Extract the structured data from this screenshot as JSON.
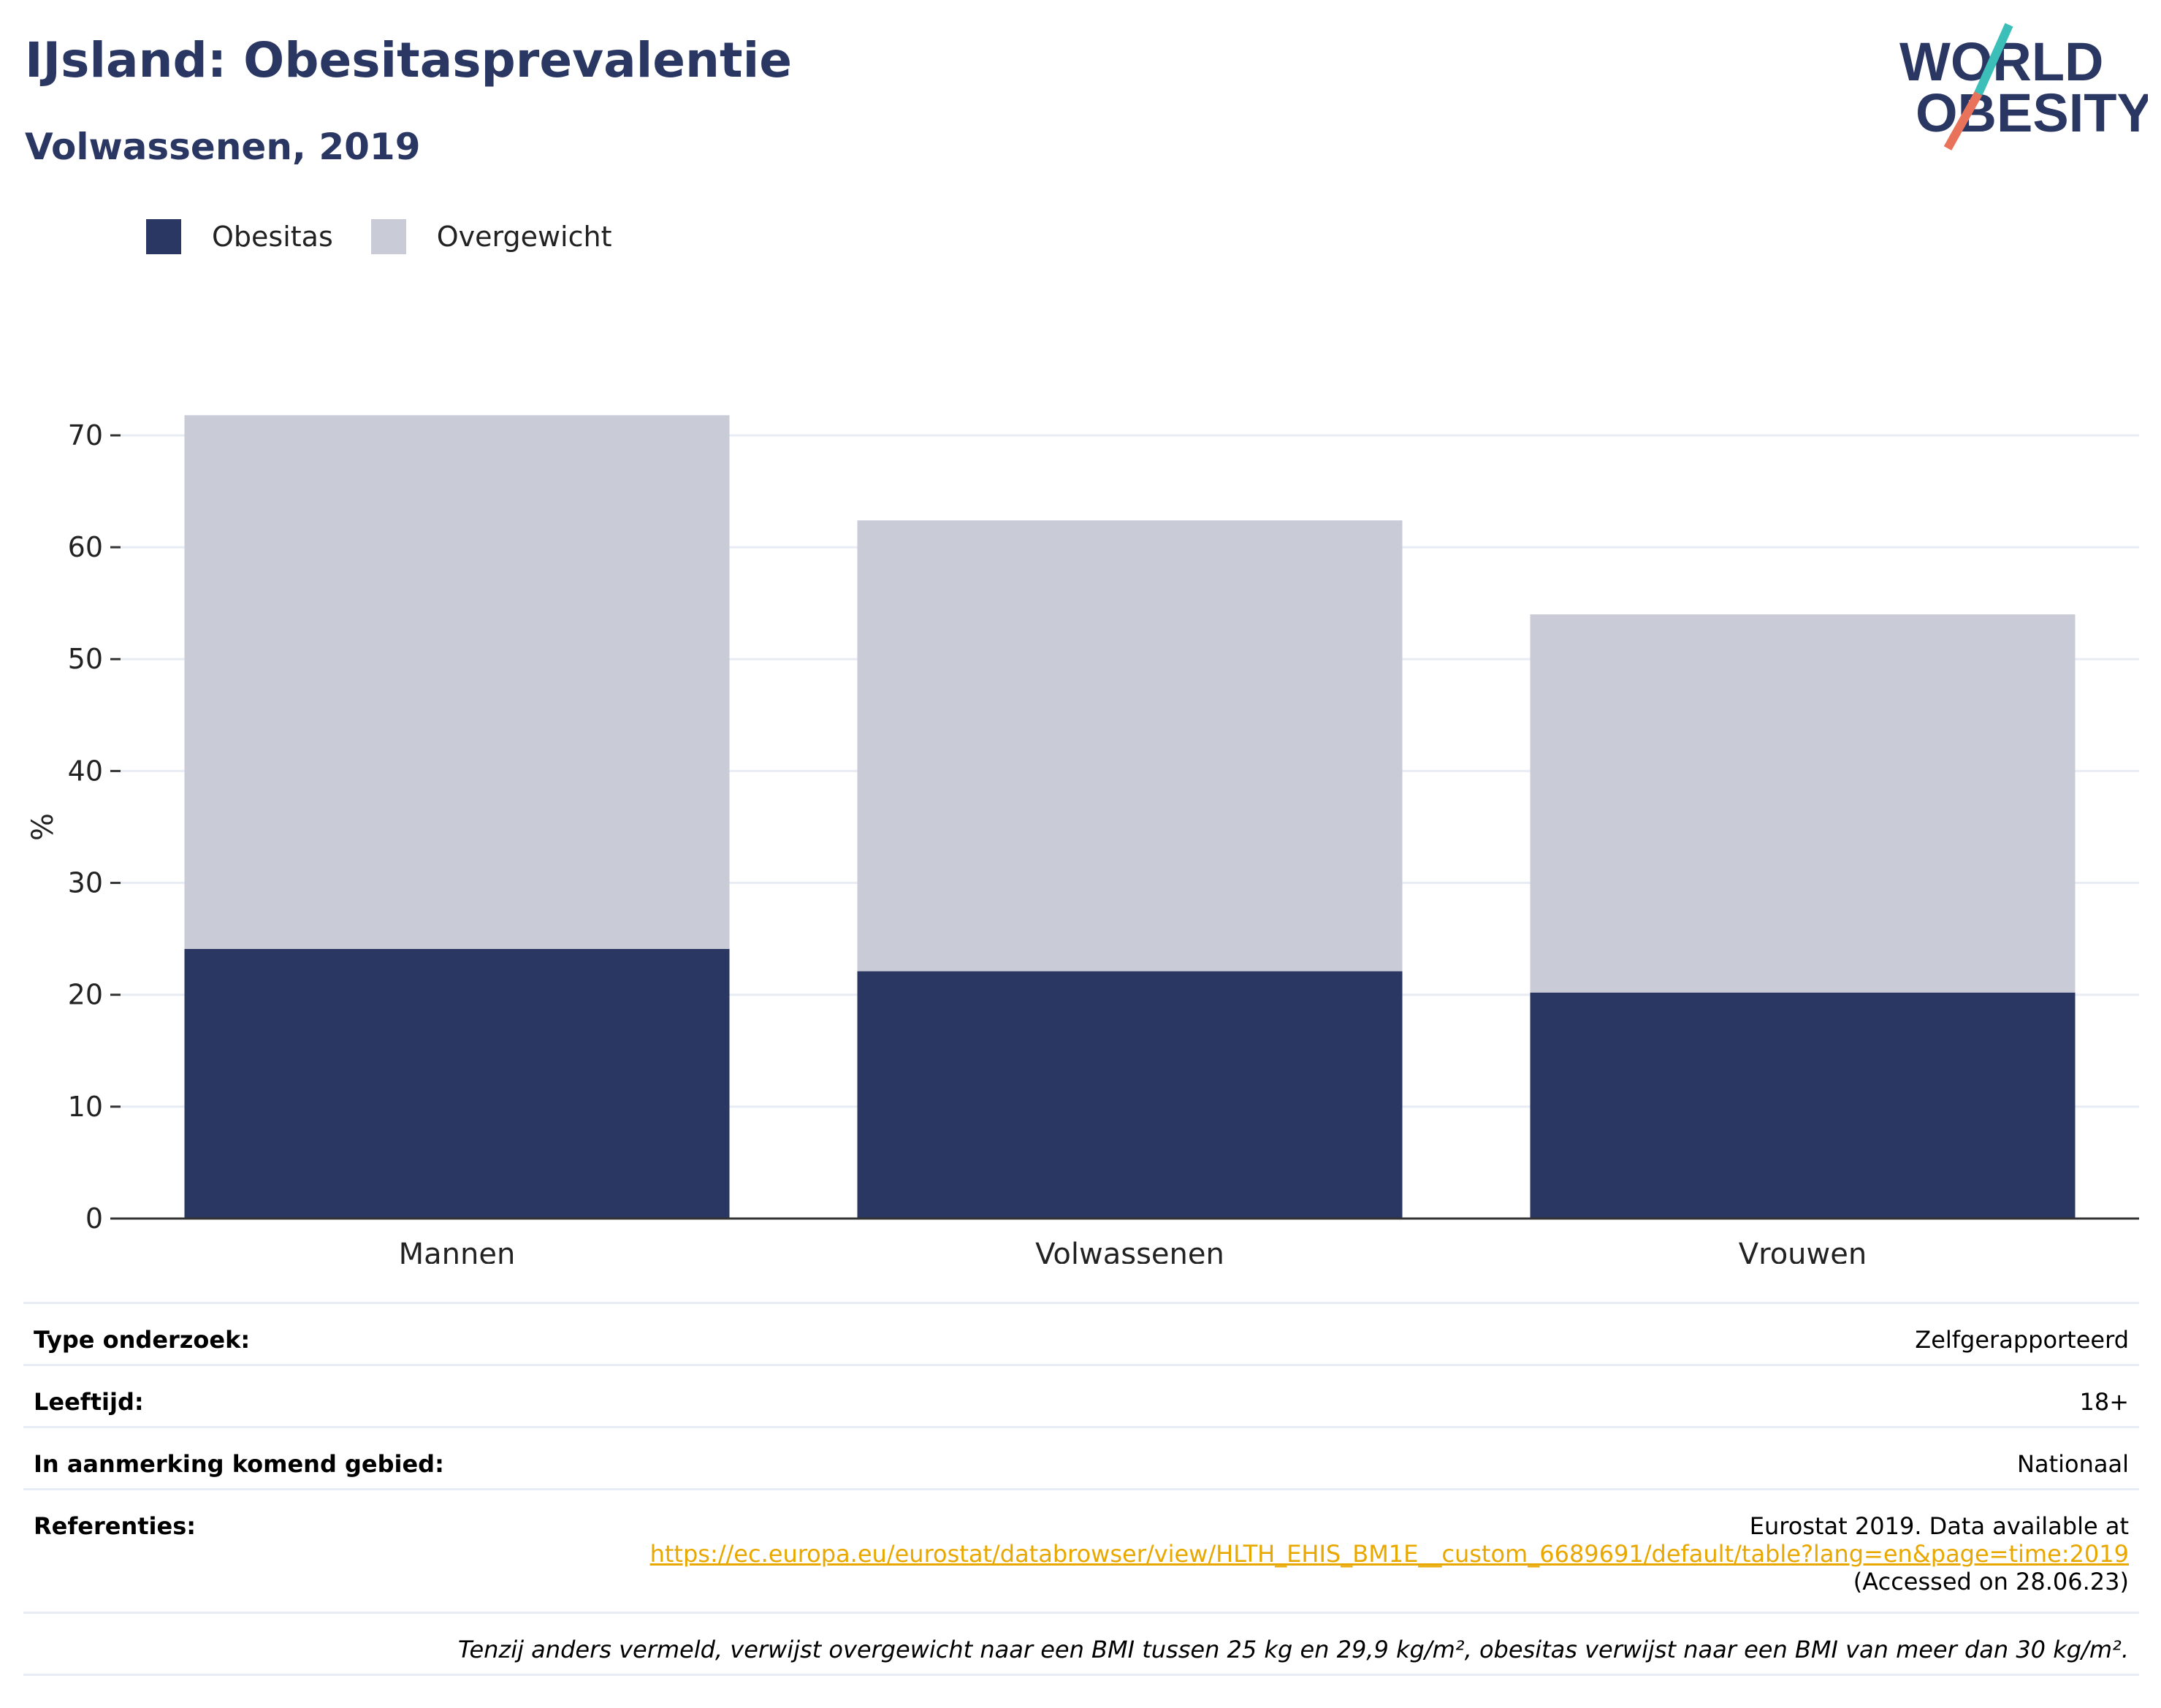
{
  "header": {
    "title": "IJsland: Obesitasprevalentie",
    "subtitle": "Volwassenen, 2019"
  },
  "logo": {
    "line1": "WORLD",
    "line2": "OBESITY",
    "colors": {
      "text": "#2a3763",
      "slash_top": "#3bbfb8",
      "slash_bottom": "#e8735a"
    }
  },
  "colors": {
    "obesitas": "#2a3763",
    "overgewicht": "#c9cbd7",
    "grid": "#e8ecf4",
    "axis": "#333333"
  },
  "chart_data": {
    "type": "bar",
    "stacked": true,
    "categories": [
      "Mannen",
      "Volwassenen",
      "Vrouwen"
    ],
    "series": [
      {
        "name": "Obesitas",
        "values": [
          24.1,
          22.1,
          20.2
        ]
      },
      {
        "name": "Overgewicht",
        "values": [
          47.7,
          40.3,
          33.8
        ]
      }
    ],
    "totals": [
      71.8,
      62.4,
      54.0
    ],
    "ylabel": "%",
    "xlabel": "",
    "ylim": [
      0,
      73
    ],
    "yticks": [
      0,
      10,
      20,
      30,
      40,
      50,
      60,
      70
    ],
    "grid": true,
    "legend_position": "top-left"
  },
  "info": {
    "survey_type": {
      "label": "Type onderzoek:",
      "value": "Zelfgerapporteerd"
    },
    "age": {
      "label": "Leeftijd:",
      "value": "18+"
    },
    "area": {
      "label": "In aanmerking komend gebied:",
      "value": "Nationaal"
    },
    "references": {
      "label": "Referenties:",
      "line1": "Eurostat 2019. Data available at",
      "link": "https://ec.europa.eu/eurostat/databrowser/view/HLTH_EHIS_BM1E__custom_6689691/default/table?lang=en&page=time:2019",
      "line3": "(Accessed on 28.06.23)"
    },
    "note": "Tenzij anders vermeld, verwijst overgewicht naar een BMI tussen 25 kg en 29,9 kg/m², obesitas verwijst naar een BMI van meer dan 30 kg/m²."
  }
}
